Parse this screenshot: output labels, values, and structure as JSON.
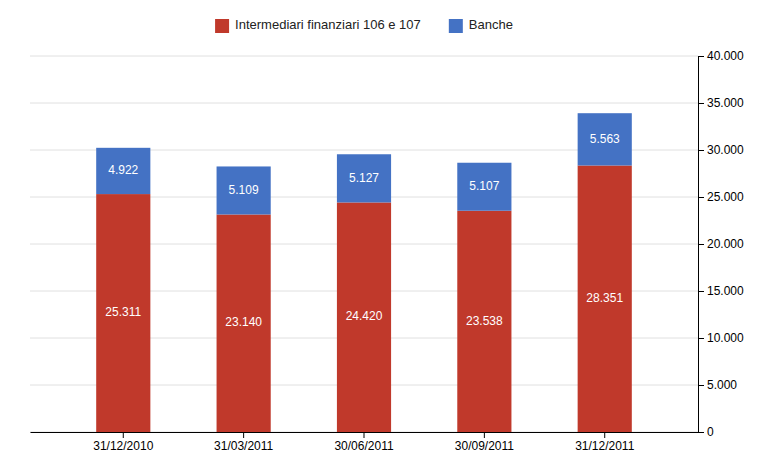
{
  "chart_data": {
    "type": "bar",
    "stacked": true,
    "data_labels": true,
    "grid": true,
    "legend": "top",
    "categories": [
      "31/12/2010",
      "31/03/2011",
      "30/06/2011",
      "30/09/2011",
      "31/12/2011"
    ],
    "series": [
      {
        "name": "Intermediari finanziari 106 e 107",
        "color": "#C0392B",
        "values": [
          25311,
          23140,
          24420,
          23538,
          28351
        ],
        "value_labels": [
          "25.311",
          "23.140",
          "24.420",
          "23.538",
          "28.351"
        ]
      },
      {
        "name": "Banche",
        "color": "#4472C4",
        "values": [
          4922,
          5109,
          5127,
          5107,
          5563
        ],
        "value_labels": [
          "4.922",
          "5.109",
          "5.127",
          "5.107",
          "5.563"
        ]
      }
    ],
    "ylim": [
      0,
      40000
    ],
    "yticks": [
      0,
      {
        "value": 5000,
        "label": "5.000"
      },
      {
        "value": 10000,
        "label": "10.000"
      },
      {
        "value": 15000,
        "label": "15.000"
      },
      {
        "value": 20000,
        "label": "20.000"
      },
      {
        "value": 25000,
        "label": "25.000"
      },
      {
        "value": 30000,
        "label": "30.000"
      },
      {
        "value": 35000,
        "label": "35.000"
      },
      {
        "value": 40000,
        "label": "40.000"
      }
    ]
  }
}
